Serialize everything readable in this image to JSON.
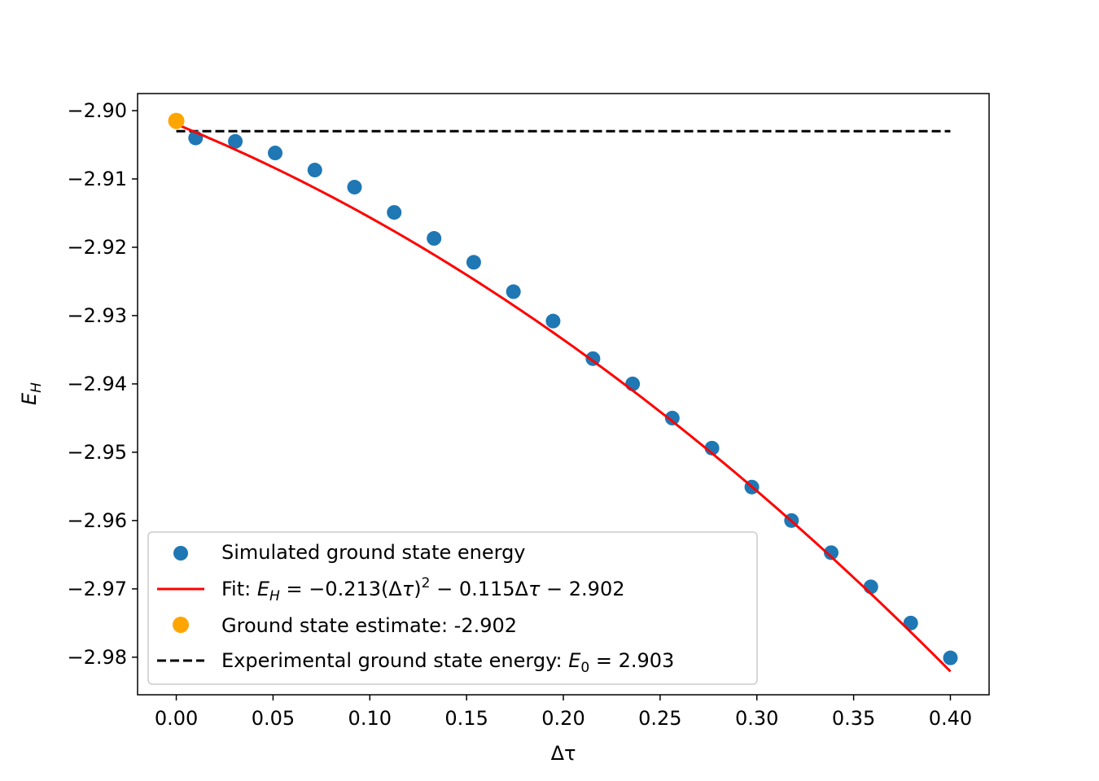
{
  "chart_data": {
    "type": "scatter",
    "xlabel": "Δτ",
    "ylabel": "E_H",
    "xlim": [
      -0.02,
      0.42
    ],
    "ylim": [
      -2.9855,
      -2.8975
    ],
    "xticks": [
      0.0,
      0.05,
      0.1,
      0.15,
      0.2,
      0.25,
      0.3,
      0.35,
      0.4
    ],
    "xtick_labels": [
      "0.00",
      "0.05",
      "0.10",
      "0.15",
      "0.20",
      "0.25",
      "0.30",
      "0.35",
      "0.40"
    ],
    "yticks": [
      -2.9,
      -2.91,
      -2.92,
      -2.93,
      -2.94,
      -2.95,
      -2.96,
      -2.97,
      -2.98
    ],
    "ytick_labels": [
      "−2.90",
      "−2.91",
      "−2.92",
      "−2.93",
      "−2.94",
      "−2.95",
      "−2.96",
      "−2.97",
      "−2.98"
    ],
    "grid": false,
    "legend_position": "lower-left",
    "series": [
      {
        "name": "Simulated ground state energy",
        "kind": "scatter",
        "color": "#1f77b4",
        "x": [
          0.01,
          0.0305,
          0.0511,
          0.0716,
          0.0921,
          0.1126,
          0.1332,
          0.1537,
          0.1742,
          0.1947,
          0.2153,
          0.2358,
          0.2563,
          0.2768,
          0.2974,
          0.3179,
          0.3384,
          0.3589,
          0.3795,
          0.4
        ],
        "y": [
          -2.904,
          -2.9045,
          -2.9062,
          -2.9087,
          -2.9112,
          -2.9149,
          -2.9187,
          -2.9222,
          -2.9265,
          -2.9308,
          -2.9363,
          -2.94,
          -2.945,
          -2.9494,
          -2.9551,
          -2.96,
          -2.9647,
          -2.9697,
          -2.975,
          -2.9801
        ]
      },
      {
        "name": "Fit: ",
        "kind": "line",
        "color": "#ff0000",
        "formula": "E_H = −0.213(Δτ)² − 0.115Δτ − 2.902",
        "coefficients": {
          "a": -0.213,
          "b": -0.115,
          "c": -2.902
        },
        "x_range": [
          0.0,
          0.4
        ]
      },
      {
        "name": "Ground state estimate: -2.902",
        "kind": "scatter",
        "color": "#ffa500",
        "x": [
          0.0
        ],
        "y": [
          -2.9015
        ]
      },
      {
        "name": "Experimental ground state energy: ",
        "kind": "hline",
        "color": "#000000",
        "y": -2.903,
        "x_range": [
          0.0,
          0.4
        ],
        "label_suffix": " = 2.903"
      }
    ]
  }
}
